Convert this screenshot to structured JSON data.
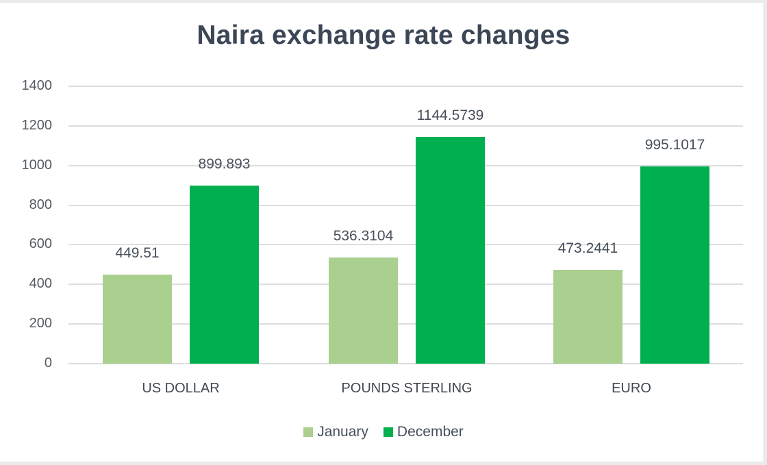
{
  "chart_data": {
    "type": "bar",
    "title": "Naira exchange rate changes",
    "xlabel": "",
    "ylabel": "",
    "ylim": [
      0,
      1400
    ],
    "yticks": [
      0,
      200,
      400,
      600,
      800,
      1000,
      1200,
      1400
    ],
    "grid": true,
    "legend_position": "bottom",
    "categories": [
      "US DOLLAR",
      "POUNDS STERLING",
      "EURO"
    ],
    "series": [
      {
        "name": "January",
        "color": "#a9d08e",
        "values": [
          449.51,
          536.3104,
          473.2441
        ],
        "labels": [
          "449.51",
          "536.3104",
          "473.2441"
        ]
      },
      {
        "name": "December",
        "color": "#00b050",
        "values": [
          899.893,
          1144.5739,
          995.1017
        ],
        "labels": [
          "899.893",
          "1144.5739",
          "995.1017"
        ]
      }
    ]
  }
}
